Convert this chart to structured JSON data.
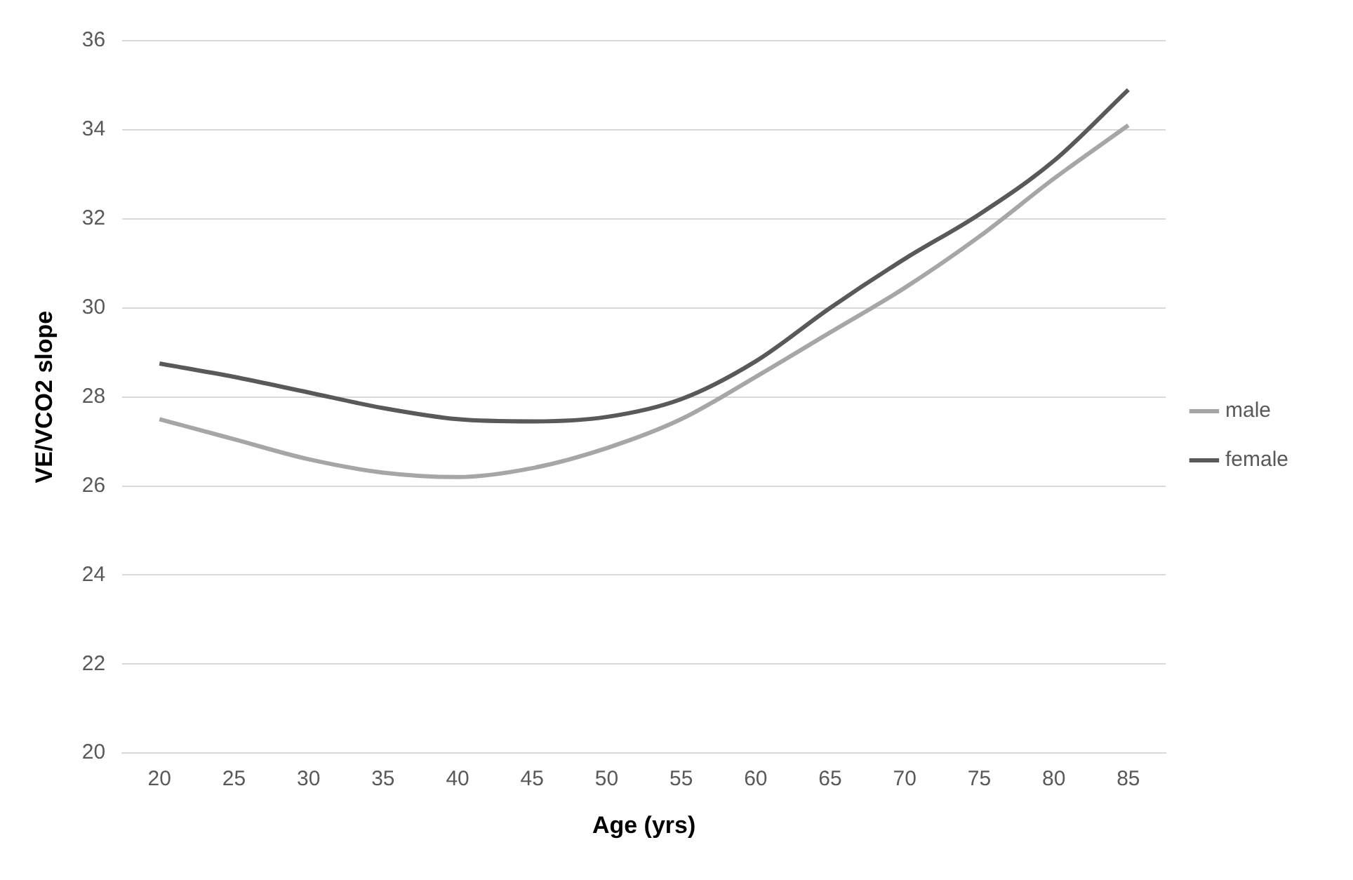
{
  "chart_data": {
    "type": "line",
    "xlabel": "Age (yrs)",
    "ylabel": "VE/VCO2 slope",
    "categories": [
      "20",
      "25",
      "30",
      "35",
      "40",
      "45",
      "50",
      "55",
      "60",
      "65",
      "70",
      "75",
      "80",
      "85"
    ],
    "series": [
      {
        "name": "male",
        "color": "#a6a6a6",
        "values": [
          27.5,
          27.05,
          26.6,
          26.3,
          26.2,
          26.4,
          26.85,
          27.5,
          28.45,
          29.45,
          30.45,
          31.6,
          32.9,
          34.1
        ]
      },
      {
        "name": "female",
        "color": "#595959",
        "values": [
          28.75,
          28.45,
          28.1,
          27.75,
          27.5,
          27.45,
          27.55,
          27.95,
          28.8,
          30.0,
          31.1,
          32.1,
          33.3,
          34.9
        ]
      }
    ],
    "ylim": [
      20,
      36
    ],
    "yticks": [
      20,
      22,
      24,
      26,
      28,
      30,
      32,
      34,
      36
    ],
    "grid": "y",
    "legend": "right",
    "marker": "none",
    "line_style": "solid"
  }
}
